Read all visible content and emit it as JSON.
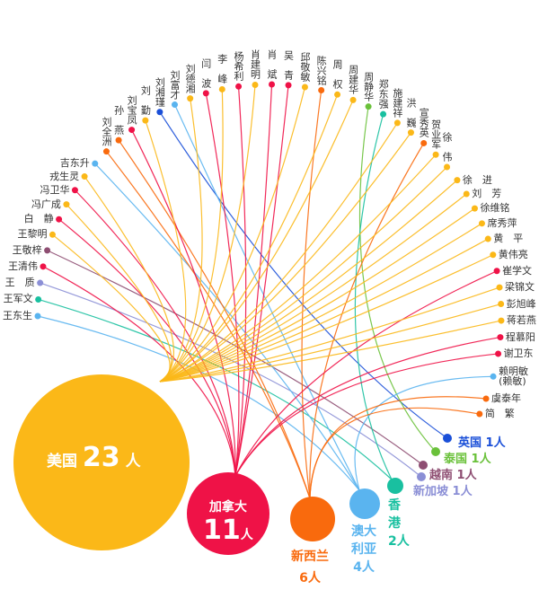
{
  "colors": {
    "usa": "#fbb818",
    "canada": "#ef1247",
    "nz": "#f96a0d",
    "australia": "#5ab4ef",
    "hk": "#19c0a0",
    "singapore": "#8b8fd6",
    "vietnam": "#8e4e72",
    "thailand": "#6ac13a",
    "uk": "#1a4fd8"
  },
  "countries": [
    {
      "key": "usa",
      "name": "美国",
      "count": "23",
      "unit": "人"
    },
    {
      "key": "canada",
      "name": "加拿大",
      "count": "11",
      "unit": "人"
    },
    {
      "key": "nz",
      "name": "新西兰",
      "count": "6",
      "unit": "人"
    },
    {
      "key": "australia",
      "name": "澳大利亚",
      "count": "4",
      "unit": "人"
    },
    {
      "key": "hk",
      "name": "香港",
      "count": "2",
      "unit": "人"
    },
    {
      "key": "singapore",
      "name": "新加坡",
      "count": "1",
      "unit": "人"
    },
    {
      "key": "vietnam",
      "name": "越南",
      "count": "1",
      "unit": "人"
    },
    {
      "key": "thailand",
      "name": "泰国",
      "count": "1",
      "unit": "人"
    },
    {
      "key": "uk",
      "name": "英国",
      "count": "1",
      "unit": "人"
    }
  ],
  "people": [
    {
      "name": "王东生",
      "country": "australia"
    },
    {
      "name": "王军文",
      "country": "hk"
    },
    {
      "name": "王　质",
      "country": "singapore"
    },
    {
      "name": "王清伟",
      "country": "canada"
    },
    {
      "name": "王敬梓",
      "country": "vietnam"
    },
    {
      "name": "王黎明",
      "country": "usa"
    },
    {
      "name": "白　静",
      "country": "canada"
    },
    {
      "name": "冯广成",
      "country": "usa"
    },
    {
      "name": "冯卫华",
      "country": "canada"
    },
    {
      "name": "戎生灵",
      "country": "usa"
    },
    {
      "name": "吉东升",
      "country": "australia"
    },
    {
      "name": "刘全洲",
      "country": "nz"
    },
    {
      "name": "孙　燕",
      "country": "nz"
    },
    {
      "name": "刘宝凤",
      "country": "canada"
    },
    {
      "name": "刘　勤",
      "country": "usa"
    },
    {
      "name": "刘湘瑾",
      "country": "uk"
    },
    {
      "name": "刘富才",
      "country": "australia"
    },
    {
      "name": "刘德湘",
      "country": "usa"
    },
    {
      "name": "闫　波",
      "country": "canada"
    },
    {
      "name": "李　峰",
      "country": "usa"
    },
    {
      "name": "杨希利",
      "country": "canada"
    },
    {
      "name": "肖建明",
      "country": "usa"
    },
    {
      "name": "肖　斌",
      "country": "canada"
    },
    {
      "name": "吴　青",
      "country": "canada"
    },
    {
      "name": "邱敬敏",
      "country": "usa"
    },
    {
      "name": "陈兴铭",
      "country": "nz"
    },
    {
      "name": "周　权",
      "country": "usa"
    },
    {
      "name": "周建华",
      "country": "usa"
    },
    {
      "name": "周静华",
      "country": "thailand"
    },
    {
      "name": "郑东强",
      "country": "hk"
    },
    {
      "name": "施建祥",
      "country": "usa"
    },
    {
      "name": "洪　巍",
      "country": "usa"
    },
    {
      "name": "宣秀英",
      "country": "nz"
    },
    {
      "name": "贺业军",
      "country": "usa"
    },
    {
      "name": "徐　伟",
      "country": "usa"
    },
    {
      "name": "徐　进",
      "country": "usa"
    },
    {
      "name": "刘　芳",
      "country": "usa"
    },
    {
      "name": "徐维铭",
      "country": "usa"
    },
    {
      "name": "席秀萍",
      "country": "usa"
    },
    {
      "name": "黄　平",
      "country": "usa"
    },
    {
      "name": "黄伟亮",
      "country": "usa"
    },
    {
      "name": "崔学文",
      "country": "canada"
    },
    {
      "name": "梁锦文",
      "country": "usa"
    },
    {
      "name": "彭旭峰",
      "country": "usa"
    },
    {
      "name": "蒋若燕",
      "country": "usa"
    },
    {
      "name": "程慕阳",
      "country": "canada"
    },
    {
      "name": "谢卫东",
      "country": "canada"
    },
    {
      "name": "赖明敏\n(赖敏)",
      "country": "australia"
    },
    {
      "name": "虞泰年",
      "country": "nz"
    },
    {
      "name": "简　繁",
      "country": "nz"
    }
  ]
}
